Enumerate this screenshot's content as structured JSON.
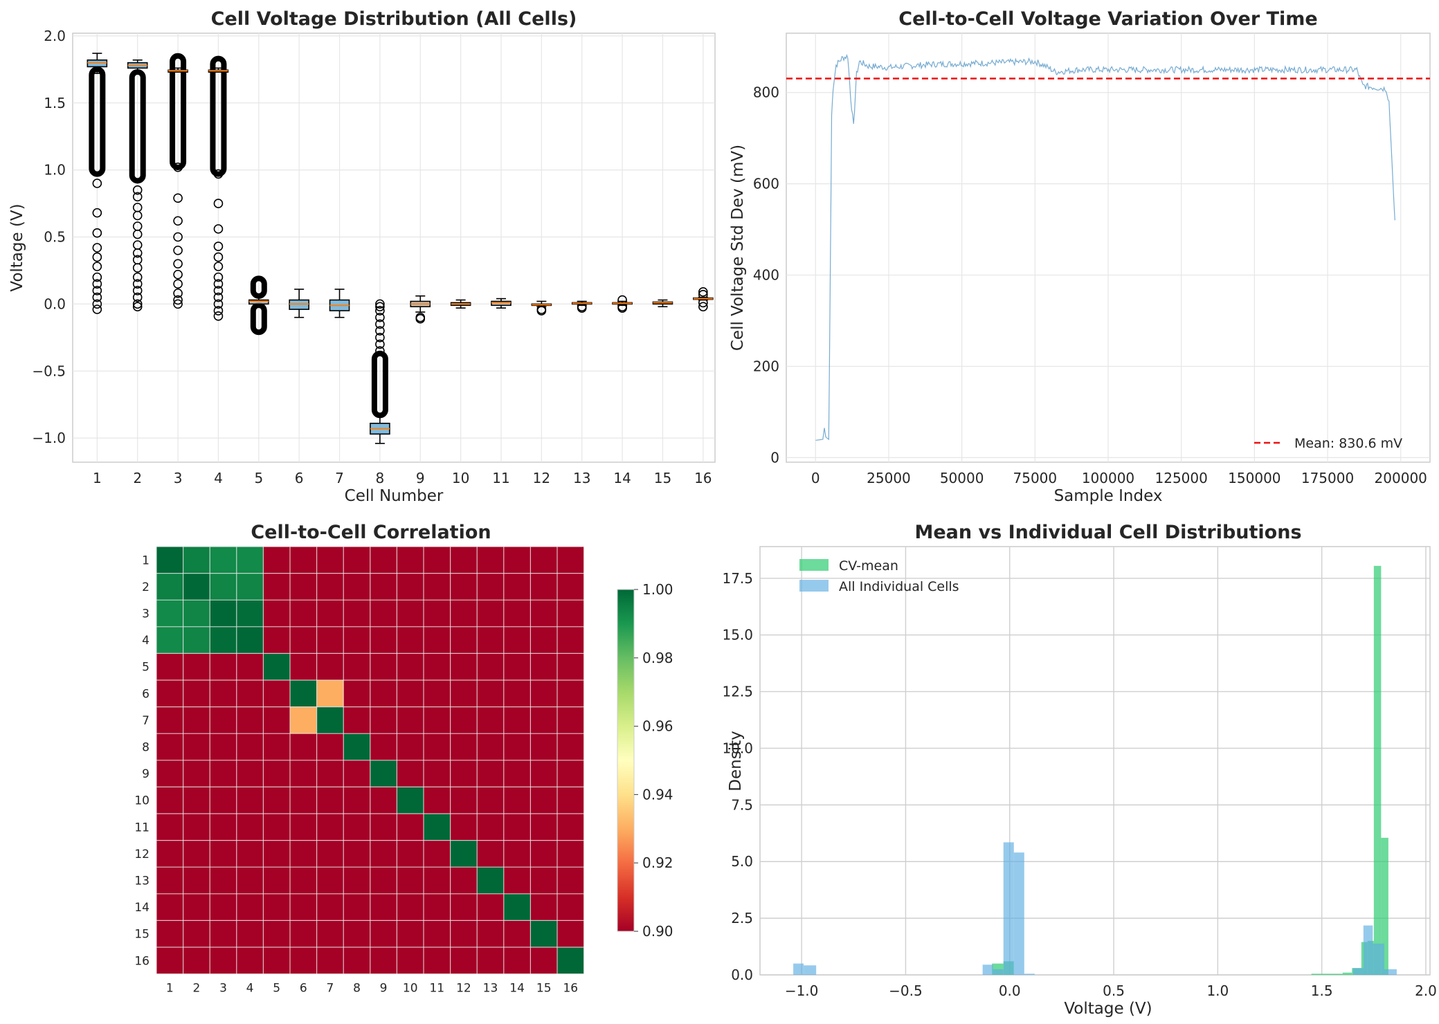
{
  "chart_data": [
    {
      "type": "box",
      "title": "Cell Voltage Distribution (All Cells)",
      "xlabel": "Cell Number",
      "ylabel": "Voltage (V)",
      "ylim": [
        -1.18,
        2.02
      ],
      "yticks": [
        -1.0,
        -0.5,
        0.0,
        0.5,
        1.0,
        1.5,
        2.0
      ],
      "ytick_labels": [
        "−1.0",
        "−0.5",
        "0.0",
        "0.5",
        "1.0",
        "1.5",
        "2.0"
      ],
      "categories": [
        "1",
        "2",
        "3",
        "4",
        "5",
        "6",
        "7",
        "8",
        "9",
        "10",
        "11",
        "12",
        "13",
        "14",
        "15",
        "16"
      ],
      "boxes": [
        {
          "whislo": 1.72,
          "q1": 1.77,
          "med": 1.8,
          "q3": 1.82,
          "whishi": 1.87,
          "out_dense": [
            1.0,
            1.72
          ],
          "fliers": [
            0.9,
            0.68,
            0.53,
            0.42,
            0.35,
            0.28,
            0.2,
            0.15,
            0.1,
            0.05,
            0.0,
            -0.04
          ]
        },
        {
          "whislo": 1.72,
          "q1": 1.76,
          "med": 1.78,
          "q3": 1.8,
          "whishi": 1.82,
          "out_dense": [
            0.95,
            1.7
          ],
          "fliers": [
            0.85,
            0.8,
            0.72,
            0.66,
            0.58,
            0.52,
            0.44,
            0.38,
            0.33,
            0.27,
            0.2,
            0.15,
            0.1,
            0.05,
            0.0,
            -0.02
          ]
        },
        {
          "whislo": 1.73,
          "q1": 1.73,
          "med": 1.74,
          "q3": 1.745,
          "whishi": 1.76,
          "out_dense": [
            1.05,
            1.82
          ],
          "fliers": [
            1.02,
            0.79,
            0.62,
            0.5,
            0.4,
            0.3,
            0.22,
            0.15,
            0.08,
            0.03,
            0.0
          ]
        },
        {
          "whislo": 1.73,
          "q1": 1.73,
          "med": 1.74,
          "q3": 1.745,
          "whishi": 1.76,
          "out_dense": [
            1.0,
            1.8
          ],
          "fliers": [
            0.97,
            0.75,
            0.56,
            0.43,
            0.35,
            0.28,
            0.2,
            0.15,
            0.1,
            0.05,
            0.0,
            -0.05,
            -0.09
          ]
        },
        {
          "whislo": -0.02,
          "q1": 0.0,
          "med": 0.02,
          "q3": 0.03,
          "whishi": 0.07,
          "out_dense": [
            0.09,
            0.16
          ],
          "out_dense2": [
            -0.18,
            -0.04
          ],
          "fliers": []
        },
        {
          "whislo": -0.1,
          "q1": -0.04,
          "med": 0.0,
          "q3": 0.03,
          "whishi": 0.11,
          "fliers": []
        },
        {
          "whislo": -0.1,
          "q1": -0.05,
          "med": -0.01,
          "q3": 0.03,
          "whishi": 0.11,
          "fliers": []
        },
        {
          "whislo": -1.04,
          "q1": -0.97,
          "med": -0.93,
          "q3": -0.89,
          "whishi": -0.82,
          "out_dense": [
            -0.8,
            -0.4
          ],
          "fliers": [
            -0.35,
            -0.3,
            -0.25,
            -0.2,
            -0.15,
            -0.1,
            -0.05,
            -0.02,
            0.0
          ]
        },
        {
          "whislo": -0.06,
          "q1": -0.02,
          "med": 0.0,
          "q3": 0.02,
          "whishi": 0.06,
          "fliers": [
            -0.1,
            -0.11
          ]
        },
        {
          "whislo": -0.03,
          "q1": -0.01,
          "med": 0.0,
          "q3": 0.01,
          "whishi": 0.03,
          "fliers": []
        },
        {
          "whislo": -0.03,
          "q1": -0.01,
          "med": 0.01,
          "q3": 0.02,
          "whishi": 0.04,
          "fliers": []
        },
        {
          "whislo": -0.02,
          "q1": -0.01,
          "med": -0.005,
          "q3": 0.0,
          "whishi": 0.02,
          "fliers": [
            -0.04,
            -0.05
          ]
        },
        {
          "whislo": -0.01,
          "q1": 0.0,
          "med": 0.005,
          "q3": 0.01,
          "whishi": 0.02,
          "fliers": [
            -0.02,
            -0.03
          ]
        },
        {
          "whislo": -0.01,
          "q1": 0.0,
          "med": 0.005,
          "q3": 0.01,
          "whishi": 0.02,
          "fliers": [
            0.03,
            -0.02,
            -0.03
          ]
        },
        {
          "whislo": -0.02,
          "q1": 0.0,
          "med": 0.01,
          "q3": 0.015,
          "whishi": 0.03,
          "fliers": []
        },
        {
          "whislo": 0.03,
          "q1": 0.035,
          "med": 0.04,
          "q3": 0.045,
          "whishi": 0.05,
          "fliers": [
            0.09,
            0.07,
            0.01,
            -0.02
          ]
        }
      ]
    },
    {
      "type": "line",
      "title": "Cell-to-Cell Voltage Variation Over Time",
      "xlabel": "Sample Index",
      "ylabel": "Cell Voltage Std Dev (mV)",
      "xlim": [
        -10000,
        210000
      ],
      "ylim": [
        -10,
        930
      ],
      "xticks": [
        0,
        25000,
        50000,
        75000,
        100000,
        125000,
        150000,
        175000,
        200000
      ],
      "xtick_labels": [
        "0",
        "25000",
        "50000",
        "75000",
        "100000",
        "125000",
        "150000",
        "175000",
        "200000"
      ],
      "yticks": [
        0,
        200,
        400,
        600,
        800
      ],
      "ytick_labels": [
        "0",
        "200",
        "400",
        "600",
        "800"
      ],
      "series_color": "#6fa7cf",
      "keypoints": [
        [
          0,
          38
        ],
        [
          2500,
          40
        ],
        [
          3000,
          65
        ],
        [
          3500,
          45
        ],
        [
          4500,
          40
        ],
        [
          5000,
          380
        ],
        [
          5500,
          750
        ],
        [
          6000,
          810
        ],
        [
          7000,
          860
        ],
        [
          9000,
          875
        ],
        [
          11000,
          880
        ],
        [
          12000,
          790
        ],
        [
          13000,
          725
        ],
        [
          14000,
          840
        ],
        [
          15000,
          868
        ],
        [
          18000,
          858
        ],
        [
          25000,
          855
        ],
        [
          40000,
          862
        ],
        [
          60000,
          865
        ],
        [
          75000,
          868
        ],
        [
          78000,
          860
        ],
        [
          82000,
          845
        ],
        [
          90000,
          850
        ],
        [
          150000,
          850
        ],
        [
          185000,
          850
        ],
        [
          187000,
          815
        ],
        [
          190000,
          812
        ],
        [
          195000,
          808
        ],
        [
          196000,
          780
        ],
        [
          197000,
          650
        ],
        [
          197500,
          580
        ],
        [
          198000,
          520
        ]
      ],
      "mean_line": {
        "value": 830.6,
        "label": "Mean: 830.6 mV",
        "color": "#ee1111"
      }
    },
    {
      "type": "heatmap",
      "title": "Cell-to-Cell Correlation",
      "labels": [
        "1",
        "2",
        "3",
        "4",
        "5",
        "6",
        "7",
        "8",
        "9",
        "10",
        "11",
        "12",
        "13",
        "14",
        "15",
        "16"
      ],
      "vmin": 0.9,
      "vmax": 1.0,
      "colorbar_ticks": [
        0.9,
        0.92,
        0.94,
        0.96,
        0.98,
        1.0
      ],
      "colorbar_tick_labels": [
        "0.90",
        "0.92",
        "0.94",
        "0.96",
        "0.98",
        "1.00"
      ],
      "colormap": "RdYlGn",
      "block_1_4": [
        [
          1.0,
          0.995,
          0.993,
          0.993
        ],
        [
          0.995,
          1.0,
          0.994,
          0.994
        ],
        [
          0.993,
          0.994,
          1.0,
          0.999
        ],
        [
          0.993,
          0.994,
          0.999,
          1.0
        ]
      ],
      "corr_6_7": 0.93,
      "off_diagonal_value": 0.9
    },
    {
      "type": "histogram",
      "title": "Mean vs Individual Cell Distributions",
      "xlabel": "Voltage (V)",
      "ylabel": "Density",
      "xlim": [
        -1.2,
        2.02
      ],
      "ylim": [
        0,
        18.9
      ],
      "xticks": [
        -1.0,
        -0.5,
        0.0,
        0.5,
        1.0,
        1.5,
        2.0
      ],
      "xtick_labels": [
        "−1.0",
        "−0.5",
        "0.0",
        "0.5",
        "1.0",
        "1.5",
        "2.0"
      ],
      "yticks": [
        0,
        2.5,
        5.0,
        7.5,
        10.0,
        12.5,
        15.0,
        17.5
      ],
      "ytick_labels": [
        "0.0",
        "2.5",
        "5.0",
        "7.5",
        "10.0",
        "12.5",
        "15.0",
        "17.5"
      ],
      "series": [
        {
          "name": "CV-mean",
          "color": "#2ecc71",
          "alpha": 0.7,
          "bins": [
            [
              -0.085,
              -0.03,
              0.5
            ],
            [
              -0.03,
              0.02,
              0.6
            ],
            [
              1.45,
              1.6,
              0.05
            ],
            [
              1.6,
              1.645,
              0.1
            ],
            [
              1.645,
              1.69,
              0.3
            ],
            [
              1.69,
              1.72,
              1.45
            ],
            [
              1.72,
              1.75,
              1.5
            ],
            [
              1.75,
              1.785,
              18.05
            ],
            [
              1.785,
              1.82,
              6.05
            ]
          ]
        },
        {
          "name": "All Individual Cells",
          "color": "#5dade2",
          "alpha": 0.65,
          "bins": [
            [
              -1.04,
              -0.99,
              0.5
            ],
            [
              -0.99,
              -0.93,
              0.42
            ],
            [
              -0.13,
              -0.08,
              0.45
            ],
            [
              -0.08,
              -0.03,
              0.25
            ],
            [
              -0.03,
              0.02,
              5.85
            ],
            [
              0.02,
              0.07,
              5.4
            ],
            [
              0.07,
              0.12,
              0.05
            ],
            [
              1.65,
              1.7,
              0.3
            ],
            [
              1.7,
              1.745,
              2.18
            ],
            [
              1.745,
              1.8,
              1.38
            ],
            [
              1.8,
              1.86,
              0.25
            ]
          ]
        }
      ]
    }
  ]
}
